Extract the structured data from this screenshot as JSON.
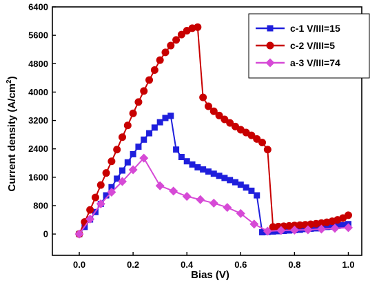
{
  "chart_data": {
    "type": "line",
    "xlabel": "Bias (V)",
    "ylabel_main": "Current density (A/cm",
    "ylabel_sup": "2",
    "ylabel_close": ")",
    "xlim": [
      -0.1,
      1.05
    ],
    "ylim": [
      -600,
      6400
    ],
    "x_ticks": [
      0.0,
      0.2,
      0.4,
      0.6,
      0.8,
      1.0
    ],
    "x_tick_labels": [
      "0.0",
      "0.2",
      "0.4",
      "0.6",
      "0.8",
      "1.0"
    ],
    "y_ticks": [
      0,
      800,
      1600,
      2400,
      3200,
      4000,
      4800,
      5600,
      6400
    ],
    "y_tick_labels": [
      "0",
      "800",
      "1600",
      "2400",
      "3200",
      "4000",
      "4800",
      "5600",
      "6400"
    ],
    "grid": false,
    "legend_position": "top-right",
    "series": [
      {
        "name": "c-1 V/III=15",
        "color": "#1f1fdc",
        "marker": "square",
        "x": [
          0,
          0.02,
          0.04,
          0.06,
          0.08,
          0.1,
          0.12,
          0.14,
          0.16,
          0.18,
          0.2,
          0.22,
          0.24,
          0.26,
          0.28,
          0.3,
          0.32,
          0.34,
          0.36,
          0.38,
          0.4,
          0.42,
          0.44,
          0.46,
          0.48,
          0.5,
          0.52,
          0.54,
          0.56,
          0.58,
          0.6,
          0.62,
          0.64,
          0.66,
          0.68,
          0.7,
          0.72,
          0.74,
          0.76,
          0.78,
          0.8,
          0.82,
          0.84,
          0.86,
          0.88,
          0.9,
          0.92,
          0.94,
          0.96,
          0.98,
          1.0
        ],
        "y": [
          0,
          200,
          410,
          620,
          850,
          1090,
          1320,
          1560,
          1790,
          2020,
          2250,
          2460,
          2660,
          2840,
          3000,
          3150,
          3270,
          3330,
          2380,
          2170,
          2050,
          1960,
          1880,
          1820,
          1760,
          1700,
          1640,
          1580,
          1520,
          1460,
          1390,
          1310,
          1220,
          1090,
          50,
          60,
          70,
          80,
          90,
          100,
          110,
          120,
          140,
          150,
          160,
          180,
          200,
          210,
          230,
          250,
          280
        ]
      },
      {
        "name": "c-2 V/III=5",
        "color": "#c80000",
        "marker": "circle",
        "x": [
          0,
          0.02,
          0.04,
          0.06,
          0.08,
          0.1,
          0.12,
          0.14,
          0.16,
          0.18,
          0.2,
          0.22,
          0.24,
          0.26,
          0.28,
          0.3,
          0.32,
          0.34,
          0.36,
          0.38,
          0.4,
          0.42,
          0.44,
          0.46,
          0.48,
          0.5,
          0.52,
          0.54,
          0.56,
          0.58,
          0.6,
          0.62,
          0.64,
          0.66,
          0.68,
          0.7,
          0.72,
          0.74,
          0.76,
          0.78,
          0.8,
          0.82,
          0.84,
          0.86,
          0.88,
          0.9,
          0.92,
          0.94,
          0.96,
          0.98,
          1.0
        ],
        "y": [
          0,
          340,
          680,
          1030,
          1380,
          1720,
          2050,
          2380,
          2730,
          3060,
          3400,
          3720,
          4030,
          4340,
          4620,
          4900,
          5120,
          5310,
          5470,
          5620,
          5730,
          5800,
          5830,
          3850,
          3600,
          3460,
          3340,
          3230,
          3130,
          3030,
          2940,
          2860,
          2780,
          2680,
          2580,
          2380,
          200,
          210,
          220,
          230,
          240,
          250,
          260,
          275,
          290,
          310,
          330,
          360,
          400,
          450,
          530
        ]
      },
      {
        "name": "a-3 V/III=74",
        "color": "#d64ad6",
        "marker": "diamond",
        "x": [
          0,
          0.04,
          0.08,
          0.12,
          0.16,
          0.2,
          0.24,
          0.3,
          0.35,
          0.4,
          0.45,
          0.5,
          0.55,
          0.6,
          0.65,
          0.7,
          0.75,
          0.8,
          0.85,
          0.9,
          0.95,
          1.0
        ],
        "y": [
          0,
          420,
          850,
          1180,
          1480,
          1810,
          2140,
          1360,
          1210,
          1060,
          970,
          870,
          750,
          580,
          280,
          80,
          100,
          110,
          120,
          140,
          160,
          180
        ]
      }
    ]
  }
}
